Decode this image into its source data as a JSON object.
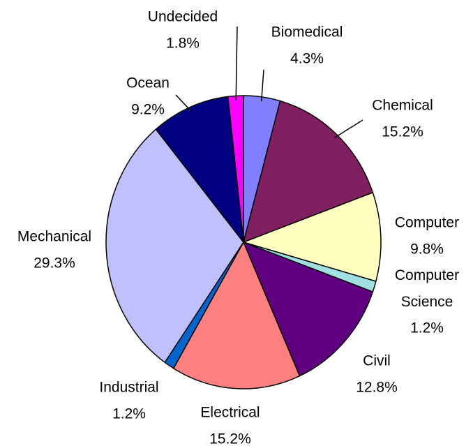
{
  "chart_data": {
    "type": "pie",
    "categories": [
      "Biomedical",
      "Chemical",
      "Computer",
      "Computer Science",
      "Civil",
      "Electrical",
      "Industrial",
      "Mechanical",
      "Ocean",
      "Undecided"
    ],
    "values": [
      4.3,
      15.2,
      9.8,
      1.2,
      12.8,
      15.2,
      1.2,
      29.3,
      9.2,
      1.8
    ],
    "value_labels": [
      "4.3%",
      "15.2%",
      "9.8%",
      "1.2%",
      "12.8%",
      "15.2%",
      "1.2%",
      "29.3%",
      "9.2%",
      "1.8%"
    ],
    "colors": [
      "#8080ff",
      "#802060",
      "#ffffc0",
      "#a0e0e0",
      "#600080",
      "#ff8080",
      "#0066cc",
      "#c0c0ff",
      "#000080",
      "#ff00ff"
    ]
  }
}
